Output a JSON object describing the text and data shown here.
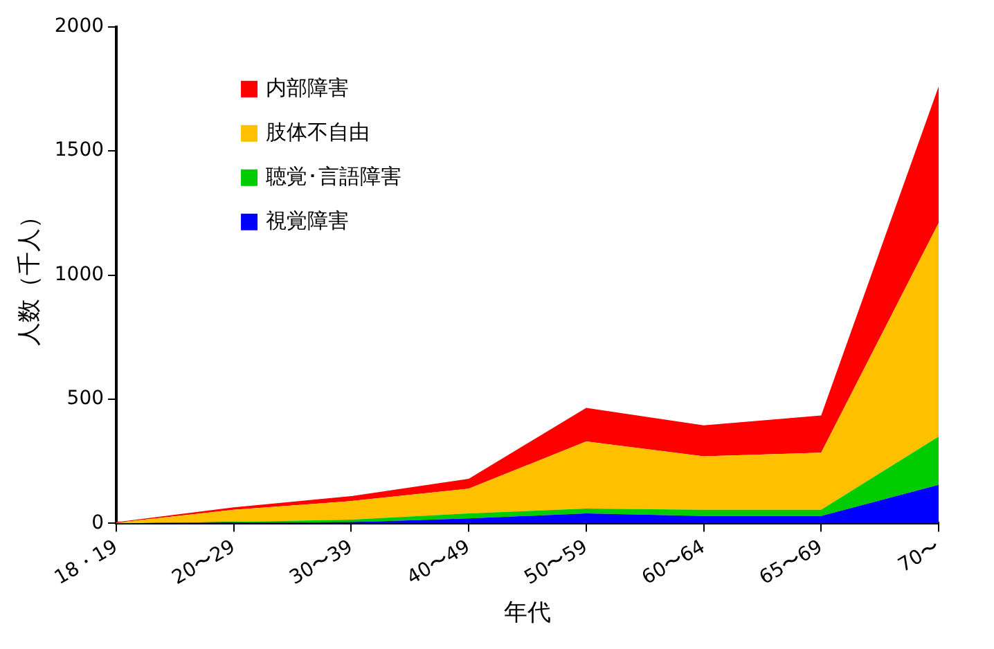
{
  "chart_data": {
    "type": "area",
    "stacked": true,
    "xlabel": "年代",
    "ylabel": "人数（千人）",
    "categories": [
      "18・19",
      "20〜29",
      "30〜39",
      "40〜49",
      "50〜59",
      "60〜64",
      "65〜69",
      "70〜"
    ],
    "ylim": [
      0,
      2000
    ],
    "yticks": [
      0,
      500,
      1000,
      1500,
      2000
    ],
    "grid": false,
    "legend": "top left",
    "series": [
      {
        "name": "視覚障害",
        "color": "#0000ff",
        "values": [
          0,
          3,
          5,
          20,
          40,
          30,
          30,
          155
        ]
      },
      {
        "name": "聴覚･言語障害",
        "color": "#00cc00",
        "values": [
          0,
          3,
          10,
          20,
          20,
          25,
          25,
          195
        ]
      },
      {
        "name": "肢体不自由",
        "color": "#ffc000",
        "values": [
          3,
          49,
          75,
          100,
          270,
          215,
          230,
          860
        ]
      },
      {
        "name": "内部障害",
        "color": "#ff0000",
        "values": [
          2,
          10,
          20,
          40,
          135,
          125,
          150,
          550
        ]
      }
    ]
  }
}
